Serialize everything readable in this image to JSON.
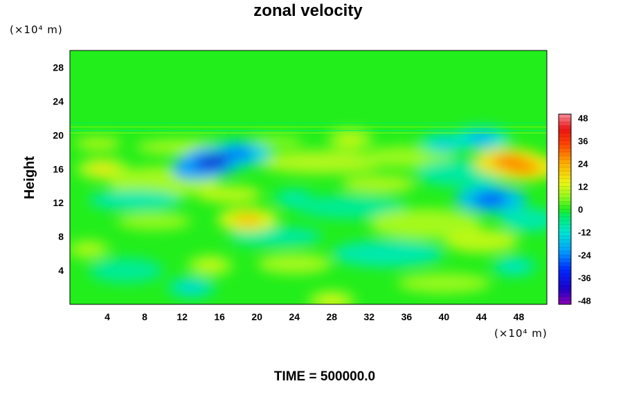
{
  "chart_data": {
    "type": "heatmap",
    "title": "zonal velocity",
    "ylabel": "Height",
    "xlabel": "",
    "x_unit": "(×10⁴ m)",
    "y_unit": "(×10⁴ m)",
    "x_ticks": [
      4,
      8,
      12,
      16,
      20,
      24,
      28,
      32,
      36,
      40,
      44,
      48
    ],
    "y_ticks": [
      4,
      8,
      12,
      16,
      20,
      24,
      28
    ],
    "xlim": [
      0,
      51
    ],
    "ylim": [
      0,
      30
    ],
    "colorbar": {
      "ticks": [
        48,
        36,
        24,
        12,
        0,
        -12,
        -24,
        -36,
        -48
      ],
      "min": -50,
      "max": 50,
      "levels": 50
    },
    "field_features": [
      {
        "x": 15.5,
        "y": 17.0,
        "value": -40
      },
      {
        "x": 18.0,
        "y": 17.8,
        "value": -26
      },
      {
        "x": 47.0,
        "y": 16.8,
        "value": 30
      },
      {
        "x": 48.5,
        "y": 16.2,
        "value": 28
      },
      {
        "x": 45.0,
        "y": 12.4,
        "value": -30
      },
      {
        "x": 19.0,
        "y": 10.0,
        "value": 22
      },
      {
        "x": 3.5,
        "y": 16.0,
        "value": 16
      },
      {
        "x": 15.0,
        "y": 4.6,
        "value": 12
      },
      {
        "x": 40.0,
        "y": 19.0,
        "value": -15
      },
      {
        "x": 30.0,
        "y": 19.5,
        "value": 12
      },
      {
        "x": 13.0,
        "y": 2.0,
        "value": -14
      },
      {
        "x": 2.0,
        "y": 6.5,
        "value": 10
      },
      {
        "x": 24.0,
        "y": 12.5,
        "value": -10
      },
      {
        "x": 28.0,
        "y": 0.4,
        "value": 13
      },
      {
        "x": 44.0,
        "y": 19.6,
        "value": -20
      },
      {
        "x": 47.5,
        "y": 4.5,
        "value": -12
      }
    ]
  },
  "footer": {
    "time_label": "TIME = 500000.0"
  }
}
